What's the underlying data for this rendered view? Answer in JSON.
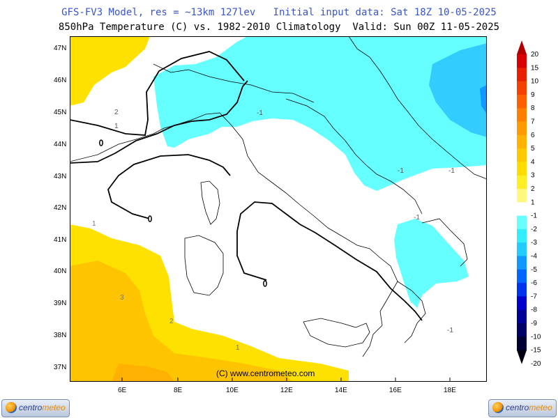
{
  "header": {
    "line1": "GFS-FV3 Model, res = ~13km 127lev   Initial input data: Sat 18Z 10-05-2025",
    "line2": "850hPa Temperature (C) vs. 1982-2010 Climatology  Valid: Sun 00Z 11-05-2025"
  },
  "map": {
    "lon_labels": [
      "6E",
      "8E",
      "10E",
      "12E",
      "14E",
      "16E",
      "18E"
    ],
    "lat_labels": [
      "47N",
      "46N",
      "45N",
      "44N",
      "43N",
      "42N",
      "41N",
      "40N",
      "39N",
      "38N",
      "37N"
    ],
    "credit": "(C) www.centrometeo.com",
    "contour_labels": [
      "2",
      "1",
      "-1",
      "1",
      "3",
      "2",
      "1",
      "-1",
      "-1",
      "-1",
      "-1"
    ]
  },
  "scale": {
    "labels": [
      "20",
      "15",
      "10",
      "9",
      "8",
      "7",
      "6",
      "5",
      "4",
      "3",
      "2",
      "1",
      "-1",
      "-2",
      "-3",
      "-4",
      "-5",
      "-6",
      "-7",
      "-8",
      "-9",
      "-10",
      "-15",
      "-20"
    ],
    "colors": [
      "#d80000",
      "#e82000",
      "#f44000",
      "#fc6000",
      "#ff7f00",
      "#ff9a00",
      "#ffb200",
      "#ffc800",
      "#ffdc00",
      "#ffee22",
      "#fff880",
      "#ffffff",
      "#66ffff",
      "#33eeff",
      "#22ccff",
      "#1199ff",
      "#0066ff",
      "#0033ee",
      "#0000cc",
      "#000099",
      "#000066",
      "#000033"
    ]
  },
  "logos": {
    "brand_a": "centro",
    "brand_b": "meteo"
  }
}
